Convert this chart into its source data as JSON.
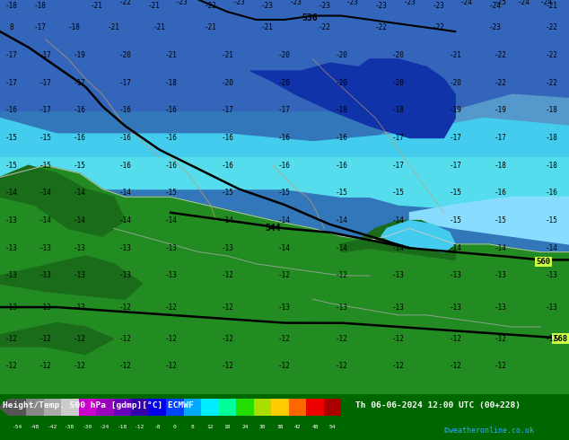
{
  "title_left": "Height/Temp. 500 hPa [gdmp][°C] ECMWF",
  "title_right": "Th 06-06-2024 12:00 UTC (00+228)",
  "credit": "©weatheronline.co.uk",
  "colors": {
    "bg_dark_blue": "#2255bb",
    "bg_med_blue": "#4488cc",
    "bg_cyan": "#55ccee",
    "bg_light_cyan": "#aaeeff",
    "bg_green_dark": "#1a6b1a",
    "bg_green": "#228B22",
    "bg_green_light": "#2da02d",
    "bottom_bar": "#006600",
    "text_dark": "#000000",
    "text_white": "#ffffff",
    "text_blue": "#0099ff",
    "contour_line": "#000000",
    "coast_line": "#cccccc",
    "coast_line2": "#cc9966"
  },
  "cb_colors": [
    "#555555",
    "#888888",
    "#aaaaaa",
    "#cccccc",
    "#cc00cc",
    "#9900bb",
    "#6600bb",
    "#3300aa",
    "#0000ee",
    "#0044ff",
    "#00aaff",
    "#00eeff",
    "#00ff99",
    "#22dd00",
    "#aadd00",
    "#ffcc00",
    "#ff6600",
    "#ee0000",
    "#aa0000"
  ],
  "cb_ticks": [
    -54,
    -48,
    -42,
    -38,
    -30,
    -24,
    -18,
    -12,
    -8,
    0,
    8,
    12,
    18,
    24,
    30,
    38,
    42,
    48,
    54
  ],
  "fig_width": 6.34,
  "fig_height": 4.9,
  "dpi": 100
}
